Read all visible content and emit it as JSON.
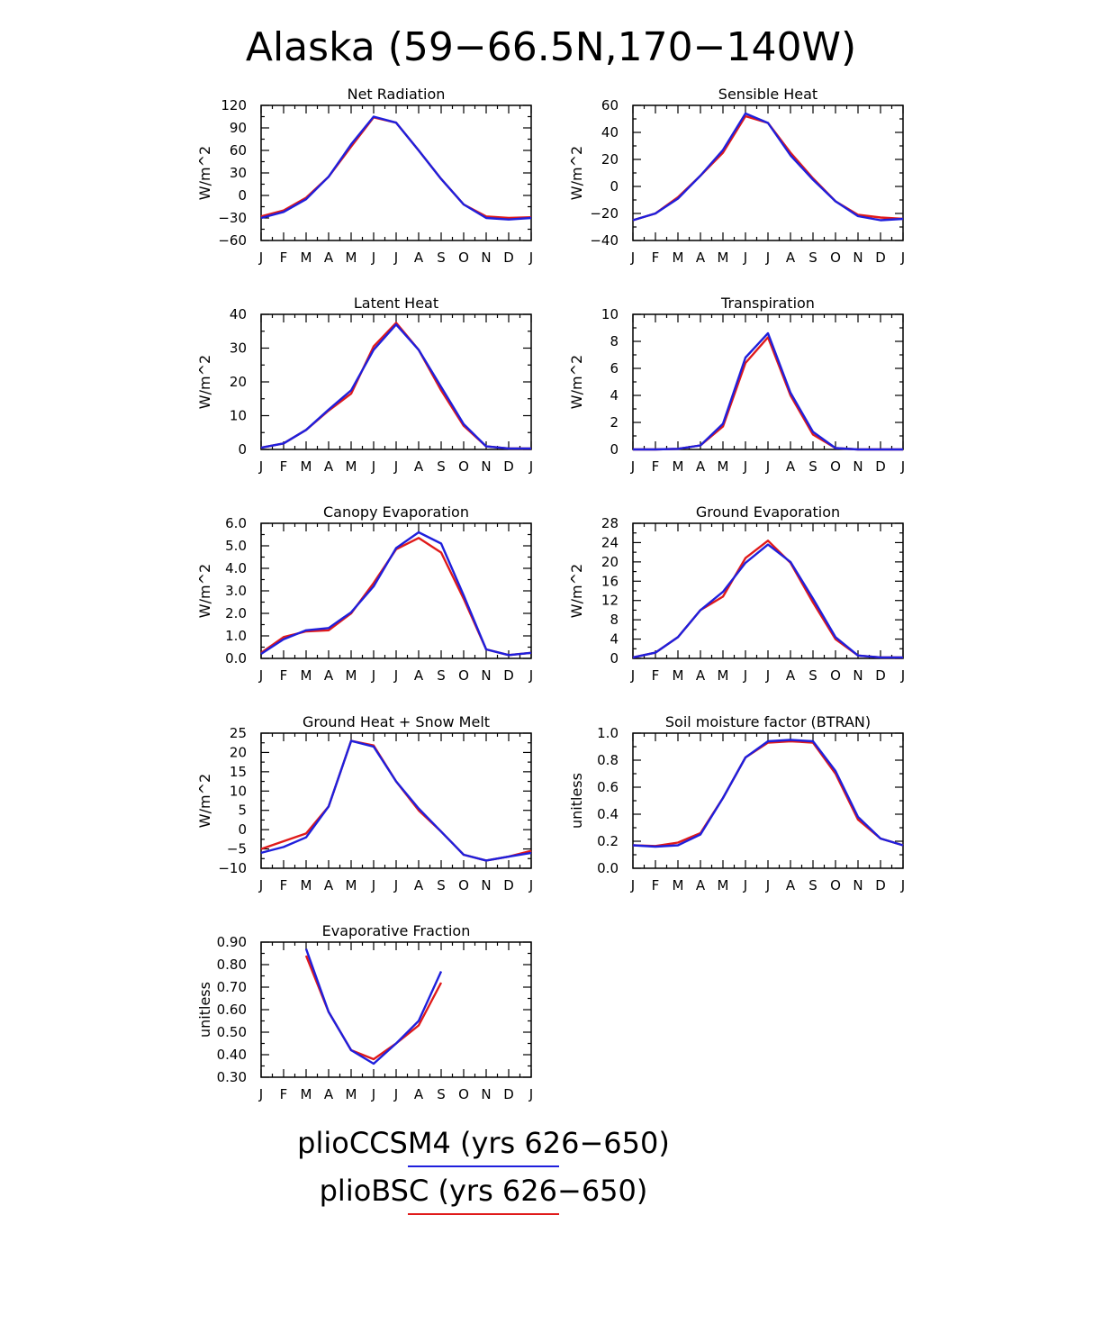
{
  "title": "Alaska (59−66.5N,170−140W)",
  "months": [
    "J",
    "F",
    "M",
    "A",
    "M",
    "J",
    "J",
    "A",
    "S",
    "O",
    "N",
    "D",
    "J"
  ],
  "legend": [
    {
      "label": "plioCCSM4 (yrs 626−650)",
      "color": "#1f1fdc"
    },
    {
      "label": "plioBSC (yrs 626−650)",
      "color": "#e01a1a"
    }
  ],
  "chart_data": [
    {
      "type": "line",
      "title": "Net Radiation",
      "ylabel": "W/m^2",
      "ylim": [
        -60,
        120
      ],
      "yticks": [
        -60,
        -30,
        0,
        30,
        60,
        90,
        120
      ],
      "ytick_labels": [
        "−60",
        "−30",
        "0",
        "30",
        "60",
        "90",
        "120"
      ],
      "series": [
        {
          "name": "plioCCSM4",
          "color": "#1f1fdc",
          "values": [
            -30,
            -22,
            -5,
            25,
            68,
            105,
            97,
            60,
            22,
            -12,
            -30,
            -32,
            -30
          ]
        },
        {
          "name": "plioBSC",
          "color": "#e01a1a",
          "values": [
            -28,
            -20,
            -3,
            25,
            65,
            104,
            97,
            60,
            22,
            -12,
            -28,
            -30,
            -29
          ]
        }
      ]
    },
    {
      "type": "line",
      "title": "Sensible Heat",
      "ylabel": "W/m^2",
      "ylim": [
        -40,
        60
      ],
      "yticks": [
        -40,
        -20,
        0,
        20,
        40,
        60
      ],
      "ytick_labels": [
        "−40",
        "−20",
        "0",
        "20",
        "40",
        "60"
      ],
      "series": [
        {
          "name": "plioCCSM4",
          "color": "#1f1fdc",
          "values": [
            -25,
            -20,
            -9,
            8,
            27,
            54,
            47,
            23,
            5,
            -11,
            -22,
            -25,
            -24
          ]
        },
        {
          "name": "plioBSC",
          "color": "#e01a1a",
          "values": [
            -25,
            -20,
            -8,
            8,
            25,
            52,
            47,
            25,
            6,
            -11,
            -21,
            -23,
            -24
          ]
        }
      ]
    },
    {
      "type": "line",
      "title": "Latent Heat",
      "ylabel": "W/m^2",
      "ylim": [
        0,
        40
      ],
      "yticks": [
        0,
        10,
        20,
        30,
        40
      ],
      "ytick_labels": [
        "0",
        "10",
        "20",
        "30",
        "40"
      ],
      "series": [
        {
          "name": "plioCCSM4",
          "color": "#1f1fdc",
          "values": [
            0.5,
            1.8,
            5.8,
            11.8,
            17.5,
            29.5,
            37.0,
            29.5,
            18.5,
            7.5,
            0.9,
            0.3,
            0.3
          ]
        },
        {
          "name": "plioBSC",
          "color": "#e01a1a",
          "values": [
            0.5,
            1.8,
            5.8,
            11.5,
            16.5,
            30.5,
            37.5,
            29.5,
            17.5,
            7.0,
            0.9,
            0.3,
            0.3
          ]
        }
      ]
    },
    {
      "type": "line",
      "title": "Transpiration",
      "ylabel": "W/m^2",
      "ylim": [
        0,
        10
      ],
      "yticks": [
        0,
        2,
        4,
        6,
        8,
        10
      ],
      "ytick_labels": [
        "0",
        "2",
        "4",
        "6",
        "8",
        "10"
      ],
      "series": [
        {
          "name": "plioCCSM4",
          "color": "#1f1fdc",
          "values": [
            0,
            0,
            0.05,
            0.3,
            1.9,
            6.8,
            8.6,
            4.2,
            1.3,
            0.1,
            0,
            0,
            0
          ]
        },
        {
          "name": "plioBSC",
          "color": "#e01a1a",
          "values": [
            0,
            0,
            0.05,
            0.3,
            1.7,
            6.4,
            8.3,
            4.0,
            1.1,
            0.1,
            0,
            0,
            0
          ]
        }
      ]
    },
    {
      "type": "line",
      "title": "Canopy Evaporation",
      "ylabel": "W/m^2",
      "ylim": [
        0,
        6
      ],
      "yticks": [
        0,
        1,
        2,
        3,
        4,
        5,
        6
      ],
      "ytick_labels": [
        "0.0",
        "1.0",
        "2.0",
        "3.0",
        "4.0",
        "5.0",
        "6.0"
      ],
      "series": [
        {
          "name": "plioCCSM4",
          "color": "#1f1fdc",
          "values": [
            0.2,
            0.85,
            1.25,
            1.35,
            2.05,
            3.2,
            4.9,
            5.6,
            5.1,
            2.8,
            0.4,
            0.15,
            0.25
          ]
        },
        {
          "name": "plioBSC",
          "color": "#e01a1a",
          "values": [
            0.25,
            0.95,
            1.2,
            1.25,
            2.0,
            3.35,
            4.85,
            5.35,
            4.7,
            2.65,
            0.4,
            0.15,
            0.25
          ]
        }
      ]
    },
    {
      "type": "line",
      "title": "Ground Evaporation",
      "ylabel": "W/m^2",
      "ylim": [
        0,
        28
      ],
      "yticks": [
        0,
        4,
        8,
        12,
        16,
        20,
        24,
        28
      ],
      "ytick_labels": [
        "0",
        "4",
        "8",
        "12",
        "16",
        "20",
        "24",
        "28"
      ],
      "series": [
        {
          "name": "plioCCSM4",
          "color": "#1f1fdc",
          "values": [
            0.2,
            1.2,
            4.4,
            10.0,
            13.8,
            19.8,
            23.6,
            20.0,
            12.4,
            4.4,
            0.6,
            0.2,
            0.2
          ]
        },
        {
          "name": "plioBSC",
          "color": "#e01a1a",
          "values": [
            0.2,
            1.2,
            4.4,
            10.0,
            12.8,
            20.8,
            24.4,
            19.8,
            11.6,
            4.0,
            0.6,
            0.2,
            0.2
          ]
        }
      ]
    },
    {
      "type": "line",
      "title": "Ground Heat + Snow Melt",
      "ylabel": "W/m^2",
      "ylim": [
        -10,
        25
      ],
      "yticks": [
        -10,
        -5,
        0,
        5,
        10,
        15,
        20,
        25
      ],
      "ytick_labels": [
        "−10",
        "−5",
        "0",
        "5",
        "10",
        "15",
        "20",
        "25"
      ],
      "series": [
        {
          "name": "plioCCSM4",
          "color": "#1f1fdc",
          "values": [
            -6,
            -4.5,
            -2,
            6,
            23,
            21.5,
            12.5,
            5.5,
            -0.5,
            -6.5,
            -8,
            -7,
            -6
          ]
        },
        {
          "name": "plioBSC",
          "color": "#e01a1a",
          "values": [
            -5,
            -3,
            -1,
            6,
            23,
            21.8,
            12.5,
            5.0,
            -0.5,
            -6.5,
            -8,
            -7,
            -5.5
          ]
        }
      ]
    },
    {
      "type": "line",
      "title": "Soil moisture factor (BTRAN)",
      "ylabel": "unitless",
      "ylim": [
        0,
        1
      ],
      "yticks": [
        0,
        0.2,
        0.4,
        0.6,
        0.8,
        1.0
      ],
      "ytick_labels": [
        "0.0",
        "0.2",
        "0.4",
        "0.6",
        "0.8",
        "1.0"
      ],
      "series": [
        {
          "name": "plioCCSM4",
          "color": "#1f1fdc",
          "values": [
            0.17,
            0.16,
            0.17,
            0.25,
            0.52,
            0.82,
            0.94,
            0.95,
            0.94,
            0.72,
            0.38,
            0.22,
            0.17
          ]
        },
        {
          "name": "plioBSC",
          "color": "#e01a1a",
          "values": [
            0.17,
            0.165,
            0.19,
            0.26,
            0.52,
            0.82,
            0.93,
            0.94,
            0.93,
            0.7,
            0.36,
            0.22,
            0.17
          ]
        }
      ]
    },
    {
      "type": "line",
      "title": "Evaporative Fraction",
      "ylabel": "unitless",
      "ylim": [
        0.3,
        0.9
      ],
      "yticks": [
        0.3,
        0.4,
        0.5,
        0.6,
        0.7,
        0.8,
        0.9
      ],
      "ytick_labels": [
        "0.30",
        "0.40",
        "0.50",
        "0.60",
        "0.70",
        "0.80",
        "0.90"
      ],
      "series": [
        {
          "name": "plioCCSM4",
          "color": "#1f1fdc",
          "values": [
            null,
            null,
            0.87,
            0.59,
            0.42,
            0.36,
            0.45,
            0.55,
            0.77,
            null,
            null,
            null,
            null
          ]
        },
        {
          "name": "plioBSC",
          "color": "#e01a1a",
          "values": [
            null,
            null,
            0.84,
            0.59,
            0.42,
            0.38,
            0.45,
            0.53,
            0.72,
            null,
            null,
            null,
            null
          ]
        }
      ]
    }
  ]
}
